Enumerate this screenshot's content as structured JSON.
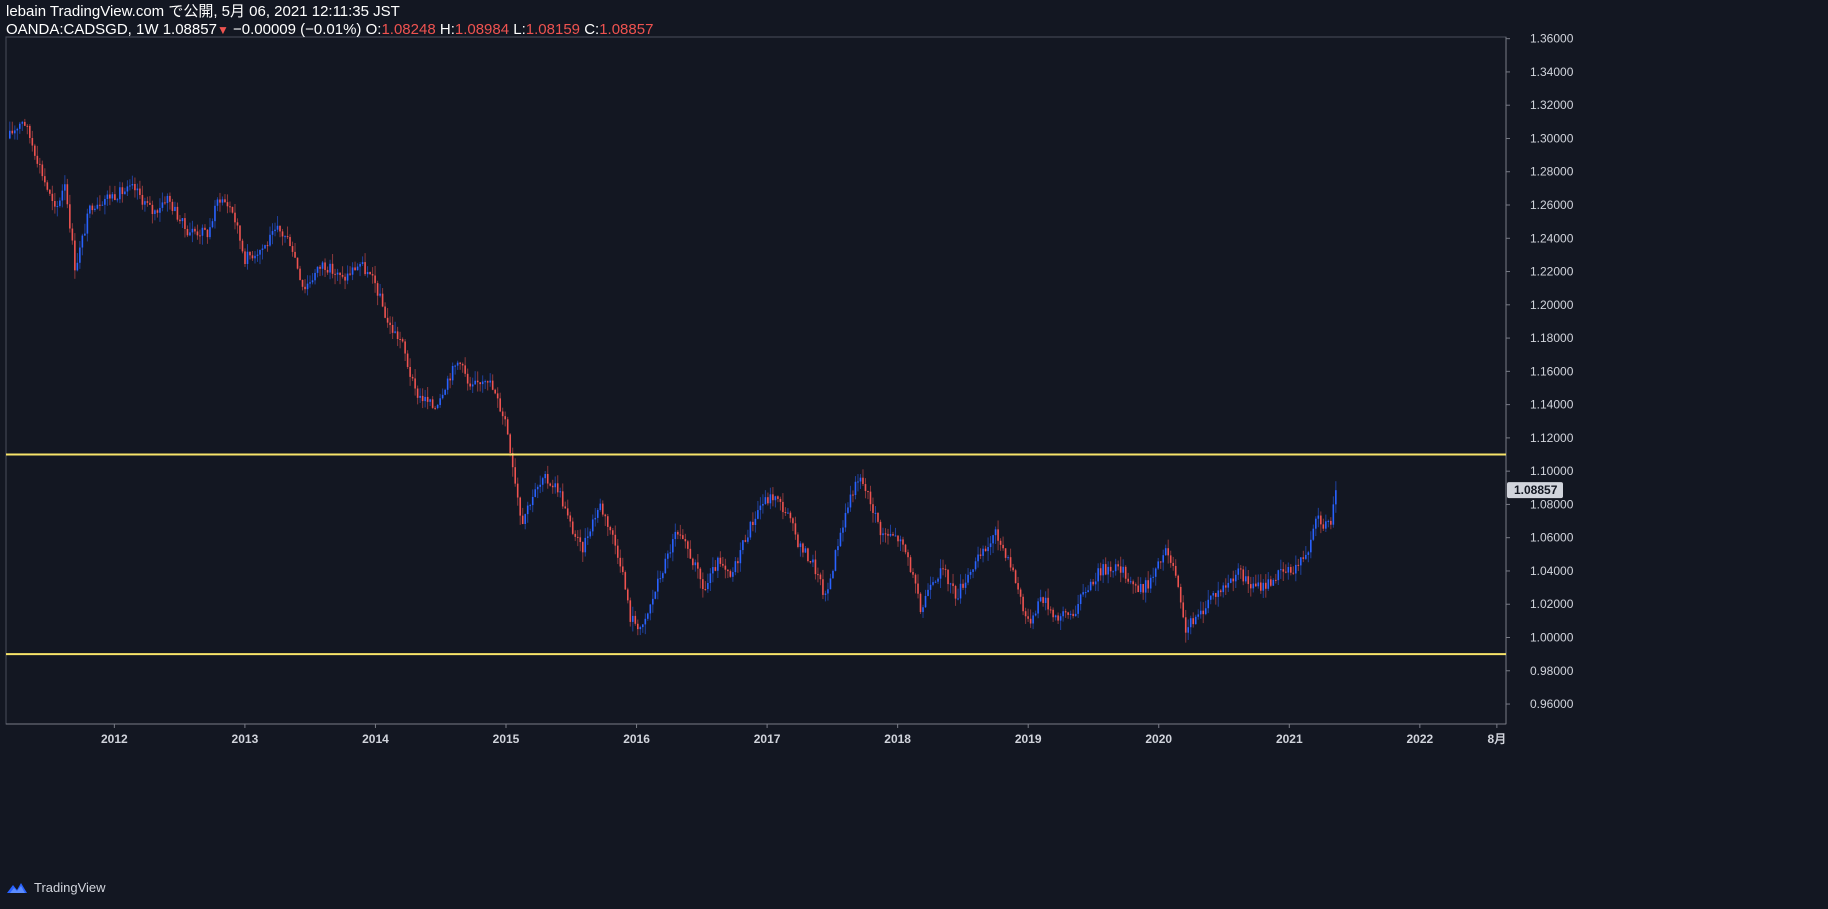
{
  "header": {
    "published": "lebain TradingView.com で公開, 5月 06, 2021 12:11:35 JST",
    "symbol": "OANDA:CADSGD, 1W",
    "last": "1.08857",
    "change": "−0.00009 (−0.01%)",
    "o_label": "O:",
    "o_value": "1.08248",
    "h_label": "H:",
    "h_value": "1.08984",
    "l_label": "L:",
    "l_value": "1.08159",
    "c_label": "C:",
    "c_value": "1.08857"
  },
  "footer": {
    "brand": "TradingView"
  },
  "colors": {
    "background": "#131722",
    "up": "#2962ff",
    "down": "#ef5350",
    "hline": "#f7e46a",
    "axis_text": "#d1d4dc"
  },
  "chart_data": {
    "type": "candlestick",
    "symbol": "OANDA:CADSGD",
    "interval": "1W",
    "y_ticks": [
      "0.96000",
      "0.98000",
      "1.00000",
      "1.02000",
      "1.04000",
      "1.06000",
      "1.08000",
      "1.10000",
      "1.12000",
      "1.14000",
      "1.16000",
      "1.18000",
      "1.20000",
      "1.22000",
      "1.24000",
      "1.26000",
      "1.28000",
      "1.30000",
      "1.32000",
      "1.34000",
      "1.36000"
    ],
    "ylim": [
      0.948,
      1.361
    ],
    "x_ticks": [
      {
        "label": "2012",
        "t": 2012.0
      },
      {
        "label": "2013",
        "t": 2013.0
      },
      {
        "label": "2014",
        "t": 2014.0
      },
      {
        "label": "2015",
        "t": 2015.0
      },
      {
        "label": "2016",
        "t": 2016.0
      },
      {
        "label": "2017",
        "t": 2017.0
      },
      {
        "label": "2018",
        "t": 2018.0
      },
      {
        "label": "2019",
        "t": 2019.0
      },
      {
        "label": "2020",
        "t": 2020.0
      },
      {
        "label": "2021",
        "t": 2021.0
      },
      {
        "label": "2022",
        "t": 2022.0
      },
      {
        "label": "8月",
        "t": 2022.59
      }
    ],
    "xlim": [
      2011.17,
      2022.66
    ],
    "horizontal_lines": [
      1.11,
      0.99
    ],
    "last_price": {
      "label": "1.08857",
      "value": 1.08857
    },
    "keypoints": [
      [
        2011.18,
        1.3
      ],
      [
        2011.3,
        1.312
      ],
      [
        2011.38,
        1.295
      ],
      [
        2011.55,
        1.255
      ],
      [
        2011.62,
        1.275
      ],
      [
        2011.7,
        1.222
      ],
      [
        2011.82,
        1.26
      ],
      [
        2011.95,
        1.265
      ],
      [
        2012.15,
        1.27
      ],
      [
        2012.3,
        1.255
      ],
      [
        2012.4,
        1.265
      ],
      [
        2012.55,
        1.245
      ],
      [
        2012.72,
        1.243
      ],
      [
        2012.8,
        1.265
      ],
      [
        2012.9,
        1.258
      ],
      [
        2013.0,
        1.228
      ],
      [
        2013.15,
        1.235
      ],
      [
        2013.25,
        1.245
      ],
      [
        2013.35,
        1.238
      ],
      [
        2013.45,
        1.21
      ],
      [
        2013.6,
        1.225
      ],
      [
        2013.75,
        1.215
      ],
      [
        2013.88,
        1.225
      ],
      [
        2014.0,
        1.212
      ],
      [
        2014.1,
        1.188
      ],
      [
        2014.2,
        1.178
      ],
      [
        2014.3,
        1.148
      ],
      [
        2014.45,
        1.138
      ],
      [
        2014.55,
        1.155
      ],
      [
        2014.65,
        1.168
      ],
      [
        2014.72,
        1.148
      ],
      [
        2014.85,
        1.158
      ],
      [
        2015.0,
        1.13
      ],
      [
        2015.07,
        1.095
      ],
      [
        2015.12,
        1.07
      ],
      [
        2015.2,
        1.085
      ],
      [
        2015.3,
        1.095
      ],
      [
        2015.4,
        1.09
      ],
      [
        2015.48,
        1.07
      ],
      [
        2015.58,
        1.052
      ],
      [
        2015.65,
        1.068
      ],
      [
        2015.72,
        1.08
      ],
      [
        2015.8,
        1.065
      ],
      [
        2015.88,
        1.045
      ],
      [
        2015.95,
        1.012
      ],
      [
        2016.05,
        1.005
      ],
      [
        2016.15,
        1.03
      ],
      [
        2016.3,
        1.062
      ],
      [
        2016.4,
        1.052
      ],
      [
        2016.52,
        1.028
      ],
      [
        2016.62,
        1.045
      ],
      [
        2016.72,
        1.035
      ],
      [
        2016.82,
        1.058
      ],
      [
        2016.95,
        1.08
      ],
      [
        2017.05,
        1.085
      ],
      [
        2017.15,
        1.075
      ],
      [
        2017.25,
        1.055
      ],
      [
        2017.35,
        1.045
      ],
      [
        2017.45,
        1.023
      ],
      [
        2017.55,
        1.06
      ],
      [
        2017.65,
        1.088
      ],
      [
        2017.72,
        1.095
      ],
      [
        2017.8,
        1.08
      ],
      [
        2017.88,
        1.062
      ],
      [
        2018.0,
        1.06
      ],
      [
        2018.08,
        1.048
      ],
      [
        2018.18,
        1.015
      ],
      [
        2018.25,
        1.035
      ],
      [
        2018.35,
        1.04
      ],
      [
        2018.45,
        1.025
      ],
      [
        2018.55,
        1.04
      ],
      [
        2018.65,
        1.05
      ],
      [
        2018.75,
        1.062
      ],
      [
        2018.85,
        1.048
      ],
      [
        2018.92,
        1.03
      ],
      [
        2019.0,
        1.008
      ],
      [
        2019.1,
        1.025
      ],
      [
        2019.22,
        1.012
      ],
      [
        2019.35,
        1.015
      ],
      [
        2019.45,
        1.03
      ],
      [
        2019.55,
        1.04
      ],
      [
        2019.65,
        1.043
      ],
      [
        2019.75,
        1.038
      ],
      [
        2019.85,
        1.028
      ],
      [
        2019.95,
        1.035
      ],
      [
        2020.05,
        1.052
      ],
      [
        2020.12,
        1.04
      ],
      [
        2020.2,
        1.005
      ],
      [
        2020.3,
        1.012
      ],
      [
        2020.4,
        1.025
      ],
      [
        2020.5,
        1.03
      ],
      [
        2020.6,
        1.04
      ],
      [
        2020.72,
        1.03
      ],
      [
        2020.82,
        1.032
      ],
      [
        2020.92,
        1.038
      ],
      [
        2021.0,
        1.04
      ],
      [
        2021.08,
        1.045
      ],
      [
        2021.15,
        1.055
      ],
      [
        2021.2,
        1.075
      ],
      [
        2021.27,
        1.068
      ],
      [
        2021.32,
        1.07
      ],
      [
        2021.36,
        1.088
      ]
    ]
  }
}
